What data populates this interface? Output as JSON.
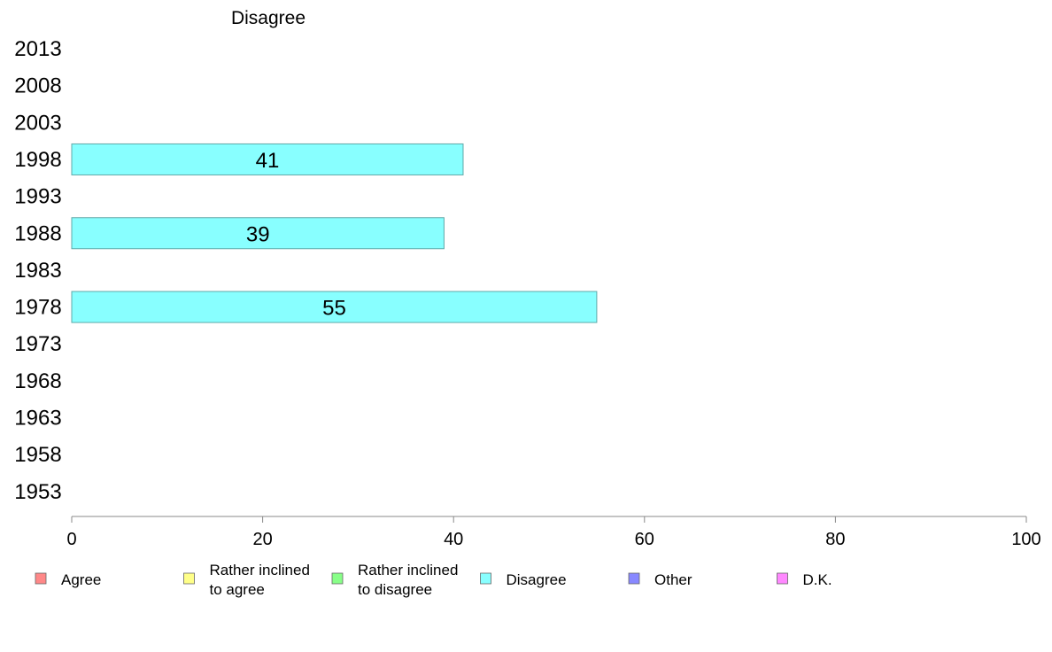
{
  "chart_data": {
    "type": "bar",
    "orientation": "horizontal",
    "title": "Disagree",
    "categories": [
      "2013",
      "2008",
      "2003",
      "1998",
      "1993",
      "1988",
      "1983",
      "1978",
      "1973",
      "1968",
      "1963",
      "1958",
      "1953"
    ],
    "series": [
      {
        "name": "Disagree",
        "color": "#88ffff",
        "values": [
          null,
          null,
          null,
          41,
          null,
          39,
          null,
          55,
          null,
          null,
          null,
          null,
          null
        ]
      }
    ],
    "xlim": [
      0,
      100
    ],
    "xticks": [
      "0",
      "20",
      "40",
      "60",
      "80",
      "100"
    ],
    "grid": false,
    "legend": {
      "placement": "bottom",
      "items": [
        {
          "lines": [
            "Agree"
          ],
          "color": "#ff8888"
        },
        {
          "lines": [
            "Rather inclined",
            "to agree"
          ],
          "color": "#ffff88"
        },
        {
          "lines": [
            "Rather inclined",
            "to disagree"
          ],
          "color": "#88ff88"
        },
        {
          "lines": [
            "Disagree"
          ],
          "color": "#88ffff"
        },
        {
          "lines": [
            "Other"
          ],
          "color": "#8888ff"
        },
        {
          "lines": [
            "D.K."
          ],
          "color": "#ff88ff"
        }
      ]
    }
  }
}
